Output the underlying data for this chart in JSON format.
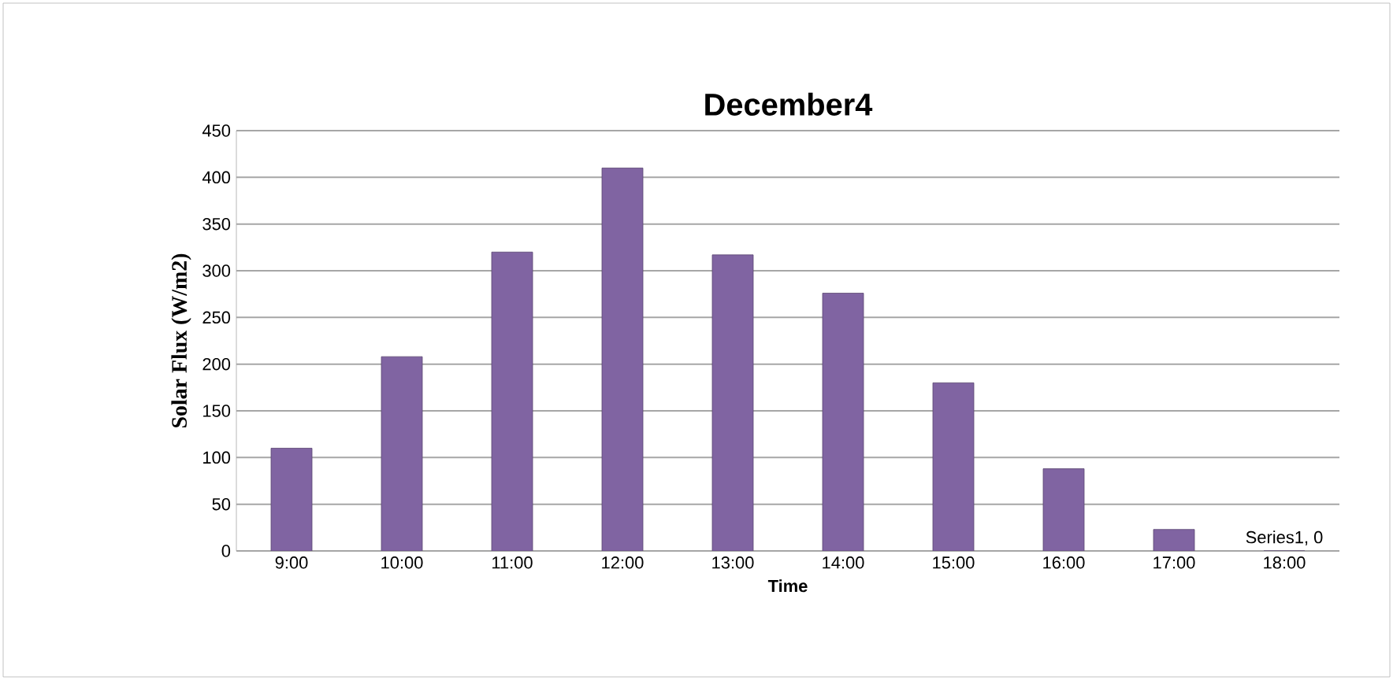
{
  "chart_data": {
    "type": "bar",
    "title": "December4",
    "xlabel": "Time",
    "ylabel": "Solar Flux (W/m2)",
    "categories": [
      "9:00",
      "10:00",
      "11:00",
      "12:00",
      "13:00",
      "14:00",
      "15:00",
      "16:00",
      "17:00",
      "18:00"
    ],
    "values": [
      110,
      208,
      320,
      410,
      317,
      276,
      180,
      88,
      23,
      0
    ],
    "color": "#8064a2",
    "ylim": [
      0,
      450
    ],
    "yticks": [
      0,
      50,
      100,
      150,
      200,
      250,
      300,
      350,
      400,
      450
    ],
    "grid": "y",
    "annotations": [
      {
        "text": "Series1, 0",
        "x": "18:00",
        "y": 0
      }
    ]
  }
}
